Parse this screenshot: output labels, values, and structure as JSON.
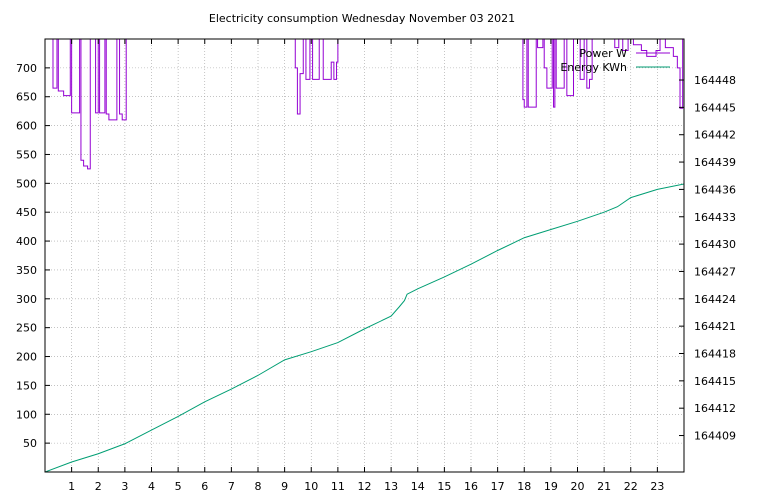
{
  "chart_data": {
    "type": "line",
    "title": "Electricity consumption Wednesday November 03 2021",
    "xlabel": "",
    "ylabel": "",
    "xlim": [
      0,
      24
    ],
    "ylim": [
      0,
      750
    ],
    "y2lim": [
      164405.0,
      164452.5
    ],
    "x_ticks": [
      "1",
      "2",
      "3",
      "4",
      "5",
      "6",
      "7",
      "8",
      "9",
      "10",
      "11",
      "12",
      "13",
      "14",
      "15",
      "16",
      "17",
      "18",
      "19",
      "20",
      "21",
      "22",
      "23"
    ],
    "y_ticks": [
      "50",
      "100",
      "150",
      "200",
      "250",
      "300",
      "350",
      "400",
      "450",
      "500",
      "550",
      "600",
      "650",
      "700"
    ],
    "y2_ticks": [
      "164409",
      "164412",
      "164415",
      "164418",
      "164421",
      "164424",
      "164427",
      "164430",
      "164433",
      "164436",
      "164439",
      "164442",
      "164445",
      "164448"
    ],
    "grid": true,
    "legend_position": "top-right",
    "series": [
      {
        "name": "Power W",
        "axis": "left",
        "color": "#9400d3",
        "style": "steps",
        "points": [
          [
            0.0,
            760
          ],
          [
            0.1,
            760
          ],
          [
            0.3,
            665
          ],
          [
            0.45,
            760
          ],
          [
            0.5,
            660
          ],
          [
            0.7,
            652
          ],
          [
            0.85,
            652
          ],
          [
            0.95,
            760
          ],
          [
            1.0,
            622
          ],
          [
            1.2,
            622
          ],
          [
            1.3,
            760
          ],
          [
            1.35,
            540
          ],
          [
            1.45,
            530
          ],
          [
            1.6,
            525
          ],
          [
            1.7,
            760
          ],
          [
            1.8,
            760
          ],
          [
            1.9,
            622
          ],
          [
            2.0,
            760
          ],
          [
            2.05,
            622
          ],
          [
            2.25,
            760
          ],
          [
            2.3,
            620
          ],
          [
            2.4,
            610
          ],
          [
            2.7,
            760
          ],
          [
            2.8,
            620
          ],
          [
            2.9,
            610
          ],
          [
            3.05,
            760
          ],
          [
            9.3,
            760
          ],
          [
            9.4,
            700
          ],
          [
            9.48,
            620
          ],
          [
            9.58,
            690
          ],
          [
            9.7,
            760
          ],
          [
            9.8,
            680
          ],
          [
            9.95,
            760
          ],
          [
            10.05,
            680
          ],
          [
            10.3,
            760
          ],
          [
            10.45,
            680
          ],
          [
            10.75,
            710
          ],
          [
            10.85,
            680
          ],
          [
            10.95,
            710
          ],
          [
            11.0,
            760
          ],
          [
            17.9,
            760
          ],
          [
            17.95,
            645
          ],
          [
            18.0,
            632
          ],
          [
            18.1,
            760
          ],
          [
            18.15,
            632
          ],
          [
            18.45,
            760
          ],
          [
            18.5,
            735
          ],
          [
            18.7,
            760
          ],
          [
            18.75,
            700
          ],
          [
            18.85,
            665
          ],
          [
            19.05,
            760
          ],
          [
            19.1,
            632
          ],
          [
            19.15,
            760
          ],
          [
            19.2,
            665
          ],
          [
            19.5,
            760
          ],
          [
            19.6,
            652
          ],
          [
            19.85,
            760
          ],
          [
            20.1,
            680
          ],
          [
            20.25,
            760
          ],
          [
            20.35,
            665
          ],
          [
            20.45,
            680
          ],
          [
            20.55,
            760
          ],
          [
            21.3,
            760
          ],
          [
            21.4,
            735
          ],
          [
            21.55,
            760
          ],
          [
            21.7,
            730
          ],
          [
            21.9,
            760
          ],
          [
            22.1,
            740
          ],
          [
            22.4,
            730
          ],
          [
            22.6,
            720
          ],
          [
            22.95,
            730
          ],
          [
            23.1,
            760
          ],
          [
            23.3,
            735
          ],
          [
            23.6,
            720
          ],
          [
            23.75,
            700
          ],
          [
            23.85,
            630
          ],
          [
            23.95,
            760
          ],
          [
            24.0,
            760
          ]
        ]
      },
      {
        "name": "Energy KWh",
        "axis": "right",
        "color": "#009e73",
        "style": "line",
        "points": [
          [
            0.0,
            164405.0
          ],
          [
            1.0,
            164406.1
          ],
          [
            2.0,
            164407.0
          ],
          [
            3.0,
            164408.1
          ],
          [
            4.0,
            164409.6
          ],
          [
            5.0,
            164411.1
          ],
          [
            6.0,
            164412.7
          ],
          [
            7.0,
            164414.1
          ],
          [
            8.0,
            164415.6
          ],
          [
            9.0,
            164417.3
          ],
          [
            10.0,
            164418.2
          ],
          [
            11.0,
            164419.2
          ],
          [
            12.0,
            164420.7
          ],
          [
            13.0,
            164422.1
          ],
          [
            13.3,
            164423.1
          ],
          [
            13.5,
            164423.8
          ],
          [
            13.6,
            164424.5
          ],
          [
            14.0,
            164425.1
          ],
          [
            15.0,
            164426.4
          ],
          [
            16.0,
            164427.8
          ],
          [
            17.0,
            164429.3
          ],
          [
            18.0,
            164430.7
          ],
          [
            19.0,
            164431.6
          ],
          [
            20.0,
            164432.5
          ],
          [
            21.0,
            164433.5
          ],
          [
            21.5,
            164434.1
          ],
          [
            22.0,
            164435.1
          ],
          [
            23.0,
            164436.0
          ],
          [
            24.0,
            164436.6
          ]
        ]
      }
    ]
  }
}
